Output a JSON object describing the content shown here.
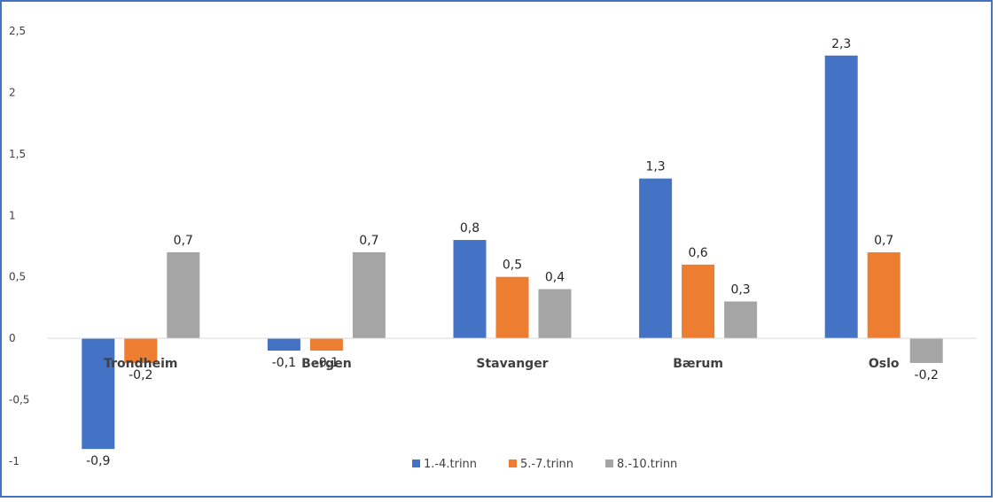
{
  "chart_data": {
    "type": "bar",
    "categories": [
      "Trondheim",
      "Bergen",
      "Stavanger",
      "Bærum",
      "Oslo"
    ],
    "series": [
      {
        "name": "1.-4.trinn",
        "color": "#4472c4",
        "values": [
          -0.9,
          -0.1,
          0.8,
          1.3,
          2.3
        ]
      },
      {
        "name": "5.-7.trinn",
        "color": "#ed7d31",
        "values": [
          -0.2,
          -0.1,
          0.5,
          0.6,
          0.7
        ]
      },
      {
        "name": "8.-10.trinn",
        "color": "#a5a5a5",
        "values": [
          0.7,
          0.7,
          0.4,
          0.3,
          -0.2
        ]
      }
    ],
    "data_labels": [
      [
        "-0,9",
        "-0,1",
        "0,8",
        "1,3",
        "2,3"
      ],
      [
        "-0,2",
        "-0,1",
        "0,5",
        "0,6",
        "0,7"
      ],
      [
        "0,7",
        "0,7",
        "0,4",
        "0,3",
        "-0,2"
      ]
    ],
    "yticks": [
      {
        "value": 2.5,
        "label": "2,5"
      },
      {
        "value": 2,
        "label": "2"
      },
      {
        "value": 1.5,
        "label": "1,5"
      },
      {
        "value": 1,
        "label": "1"
      },
      {
        "value": 0.5,
        "label": "0,5"
      },
      {
        "value": 0,
        "label": "0"
      },
      {
        "value": -0.5,
        "label": "-0,5"
      },
      {
        "value": -1,
        "label": "-1"
      }
    ],
    "ylim": [
      -1,
      2.5
    ],
    "title": "",
    "xlabel": "",
    "ylabel": "",
    "grid": false,
    "legend_position": "bottom"
  }
}
